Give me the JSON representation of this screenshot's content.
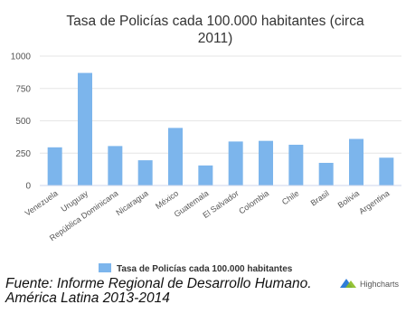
{
  "chart_data": {
    "type": "bar",
    "title_lines": [
      "Tasa de Policías cada 100.000 habitantes (circa",
      "2011)"
    ],
    "categories": [
      "Venezuela",
      "Uruguay",
      "República Dominicana",
      "Nicaragua",
      "México",
      "Guatemala",
      "El Salvador",
      "Colombia",
      "Chile",
      "Brasil",
      "Bolivia",
      "Argentina"
    ],
    "series": [
      {
        "name": "Tasa de Policías cada 100.000 habitantes",
        "values": [
          295,
          870,
          305,
          195,
          445,
          155,
          340,
          345,
          315,
          175,
          360,
          215
        ],
        "color": "#7cb5ec"
      }
    ],
    "y_ticks": [
      "0",
      "250",
      "500",
      "750",
      "1000"
    ],
    "ylim": [
      0,
      1000
    ],
    "grid": true,
    "legend_position": "bottom-center",
    "xlabel": "",
    "ylabel": ""
  },
  "credits": "Highcharts",
  "caption": {
    "line1": "Fuente: Informe Regional de Desarrollo Humano.",
    "line2": "América Latina 2013-2014"
  }
}
